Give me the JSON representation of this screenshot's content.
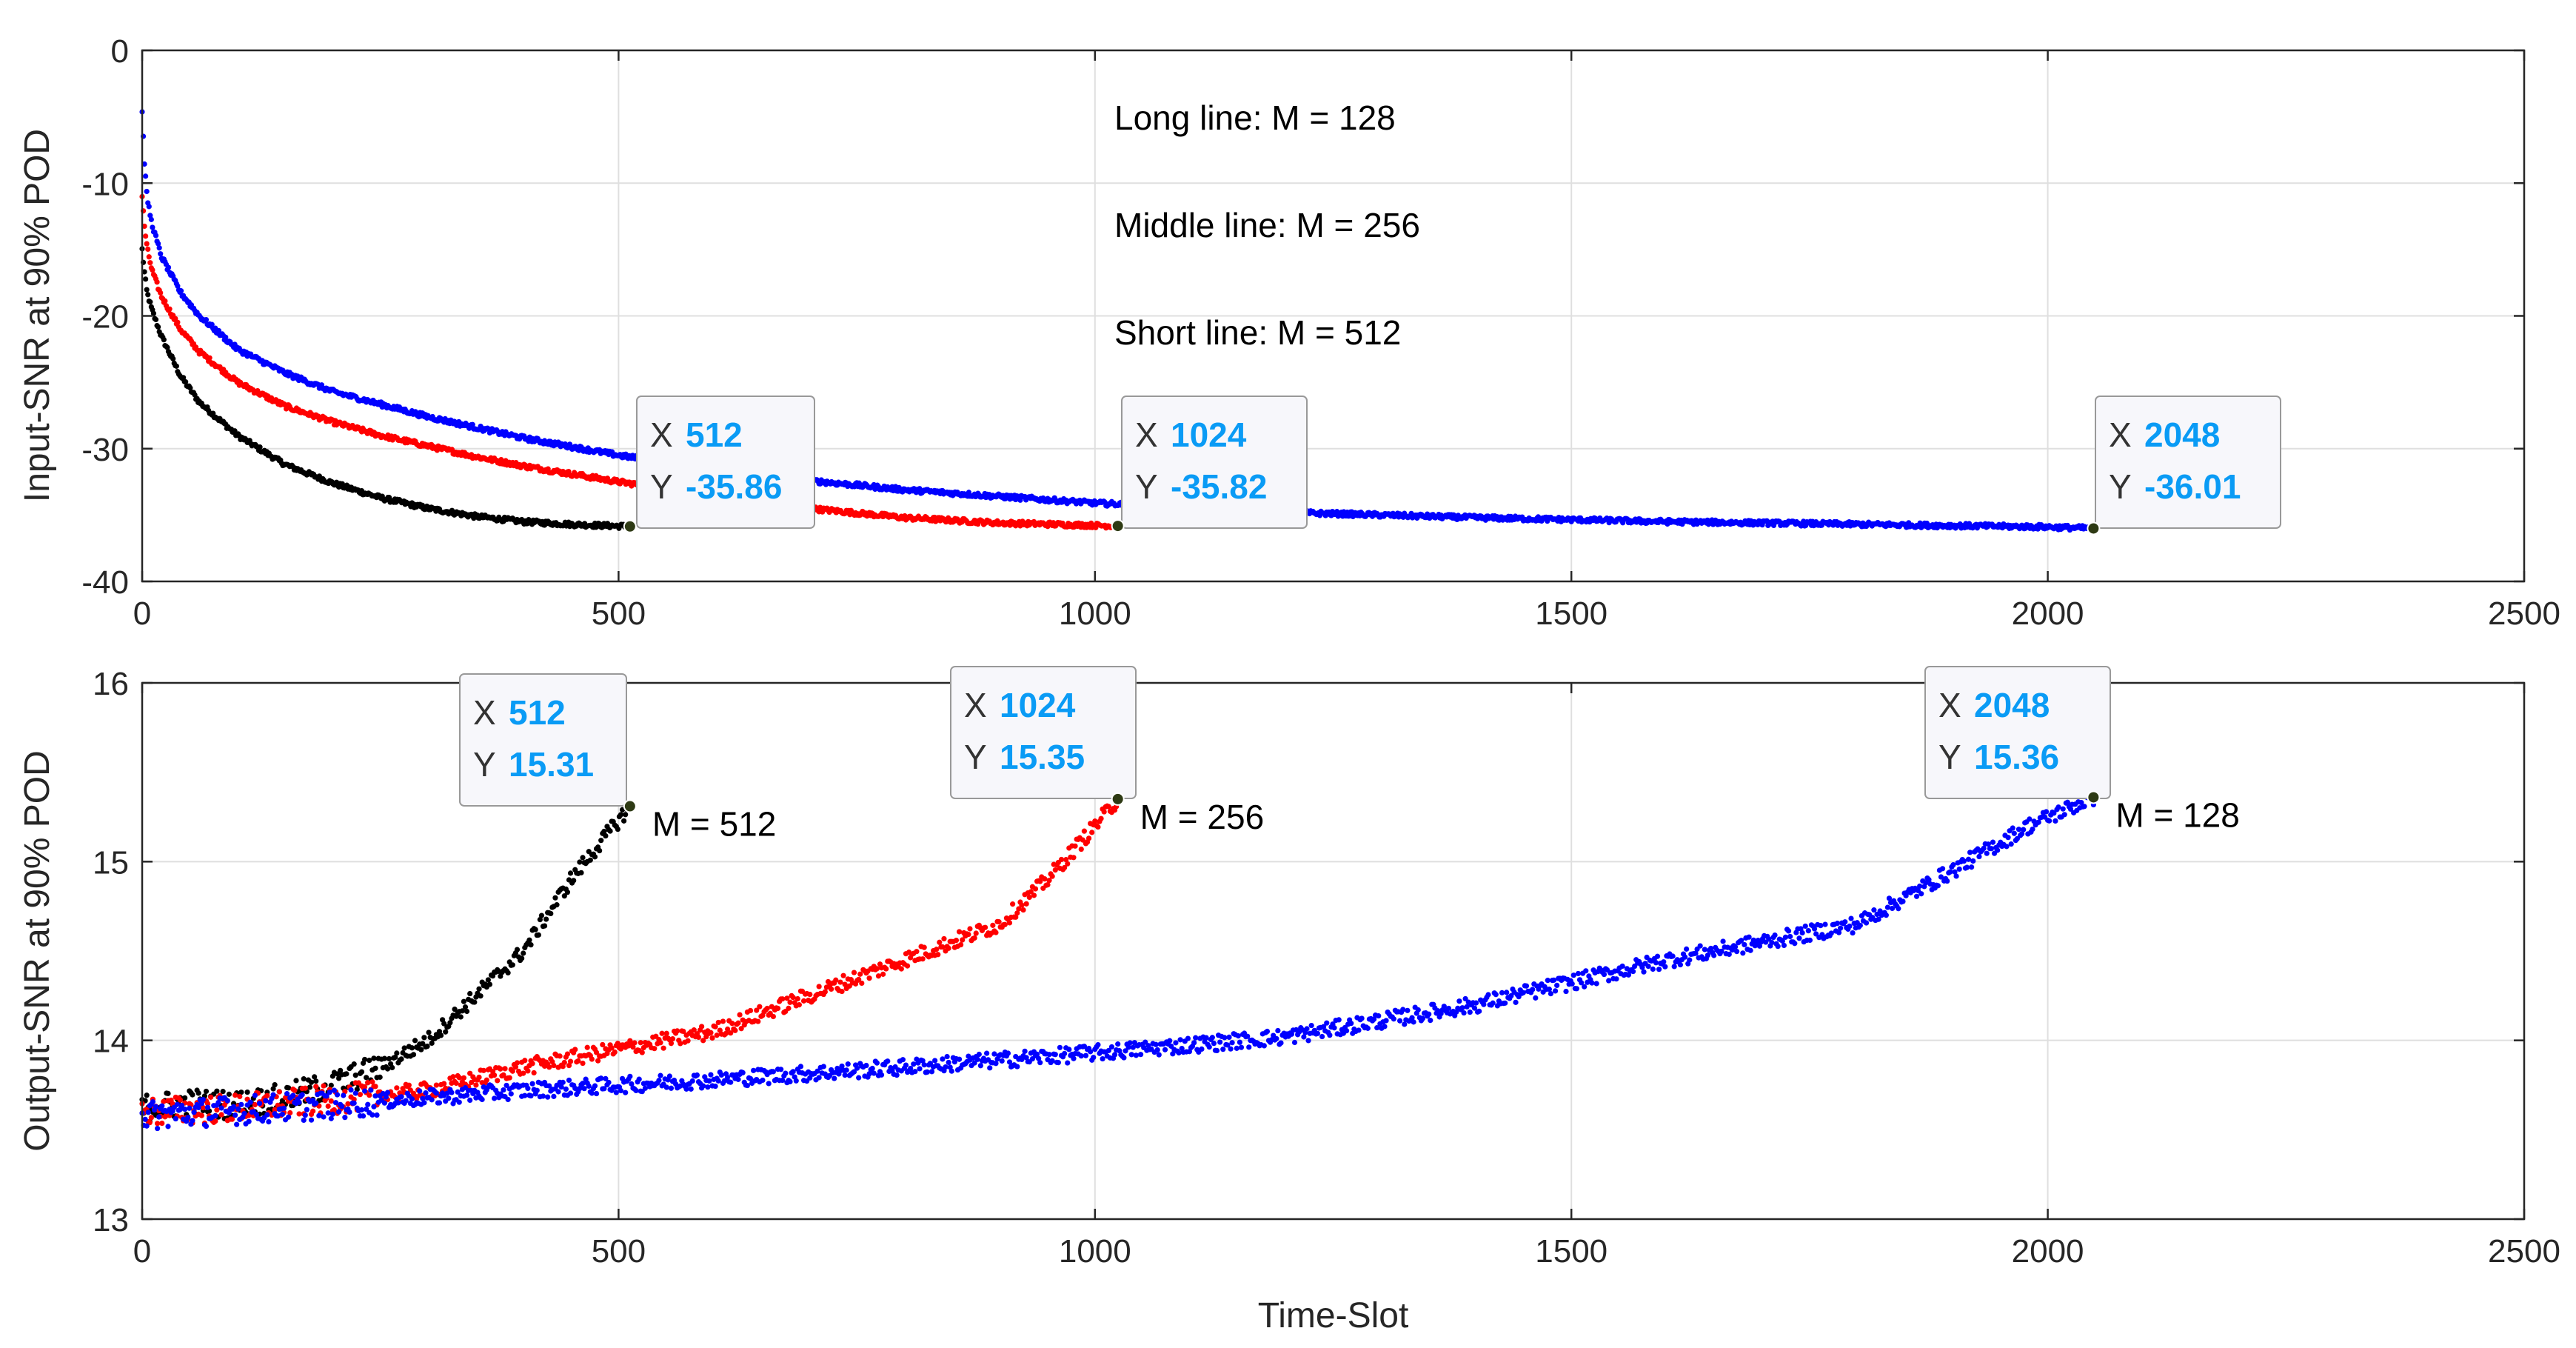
{
  "chart_data": [
    {
      "type": "scatter",
      "panel": "top",
      "xlabel": "",
      "ylabel": "Input-SNR at 90% POD",
      "xlim": [
        0,
        2500
      ],
      "ylim": [
        -40,
        0
      ],
      "xticks": [
        0,
        500,
        1000,
        1500,
        2000,
        2500
      ],
      "yticks": [
        0,
        -10,
        -20,
        -30,
        -40
      ],
      "grid": true,
      "series": [
        {
          "name": "M = 512",
          "color": "#000000",
          "points": [
            [
              0,
              -15
            ],
            [
              2,
              -16.5
            ],
            [
              5,
              -18.2
            ],
            [
              10,
              -19.5
            ],
            [
              20,
              -21.5
            ],
            [
              40,
              -24.5
            ],
            [
              60,
              -26.5
            ],
            [
              100,
              -29
            ],
            [
              150,
              -31.2
            ],
            [
              200,
              -32.6
            ],
            [
              250,
              -33.7
            ],
            [
              300,
              -34.5
            ],
            [
              350,
              -35.1
            ],
            [
              400,
              -35.5
            ],
            [
              450,
              -35.7
            ],
            [
              512,
              -35.86
            ]
          ]
        },
        {
          "name": "M = 256",
          "color": "#ff0000",
          "points": [
            [
              0,
              -11
            ],
            [
              2,
              -13
            ],
            [
              5,
              -14.8
            ],
            [
              10,
              -16.5
            ],
            [
              20,
              -18.5
            ],
            [
              40,
              -21
            ],
            [
              60,
              -22.7
            ],
            [
              100,
              -25
            ],
            [
              150,
              -26.8
            ],
            [
              200,
              -28
            ],
            [
              250,
              -29
            ],
            [
              300,
              -29.8
            ],
            [
              350,
              -30.6
            ],
            [
              400,
              -31.3
            ],
            [
              500,
              -32.5
            ],
            [
              600,
              -33.5
            ],
            [
              700,
              -34.5
            ],
            [
              800,
              -35.2
            ],
            [
              900,
              -35.6
            ],
            [
              1024,
              -35.82
            ]
          ]
        },
        {
          "name": "M = 128",
          "color": "#0000ff",
          "points": [
            [
              0,
              -4.5
            ],
            [
              2,
              -8
            ],
            [
              5,
              -11
            ],
            [
              10,
              -13
            ],
            [
              20,
              -15.5
            ],
            [
              40,
              -18.2
            ],
            [
              60,
              -20
            ],
            [
              100,
              -22.5
            ],
            [
              150,
              -24.3
            ],
            [
              200,
              -25.7
            ],
            [
              300,
              -27.6
            ],
            [
              400,
              -29.2
            ],
            [
              500,
              -30.5
            ],
            [
              600,
              -31.6
            ],
            [
              700,
              -32.4
            ],
            [
              800,
              -33.1
            ],
            [
              1000,
              -34.1
            ],
            [
              1200,
              -34.8
            ],
            [
              1400,
              -35.2
            ],
            [
              1600,
              -35.5
            ],
            [
              1800,
              -35.7
            ],
            [
              2000,
              -35.9
            ],
            [
              2048,
              -36.01
            ]
          ]
        }
      ],
      "annotations": [
        {
          "text": "Long line: M = 128"
        },
        {
          "text": "Middle line: M = 256"
        },
        {
          "text": "Short line: M = 512"
        }
      ],
      "datatips": [
        {
          "x": 512,
          "y": -35.86,
          "x_label": "512",
          "y_label": "-35.86"
        },
        {
          "x": 1024,
          "y": -35.82,
          "x_label": "1024",
          "y_label": "-35.82"
        },
        {
          "x": 2048,
          "y": -36.01,
          "x_label": "2048",
          "y_label": "-36.01"
        }
      ]
    },
    {
      "type": "scatter",
      "panel": "bottom",
      "xlabel": "Time-Slot",
      "ylabel": "Output-SNR at 90% POD",
      "xlim": [
        0,
        2500
      ],
      "ylim": [
        13,
        16
      ],
      "xticks": [
        0,
        500,
        1000,
        1500,
        2000,
        2500
      ],
      "yticks": [
        13,
        14,
        15,
        16
      ],
      "grid": true,
      "series": [
        {
          "name": "M = 512",
          "color": "#000000",
          "points": [
            [
              0,
              13.62
            ],
            [
              50,
              13.65
            ],
            [
              100,
              13.64
            ],
            [
              150,
              13.68
            ],
            [
              200,
              13.75
            ],
            [
              250,
              13.85
            ],
            [
              300,
              14.0
            ],
            [
              350,
              14.25
            ],
            [
              400,
              14.5
            ],
            [
              450,
              14.9
            ],
            [
              480,
              15.1
            ],
            [
              512,
              15.31
            ]
          ]
        },
        {
          "name": "M = 256",
          "color": "#ff0000",
          "points": [
            [
              0,
              13.6
            ],
            [
              100,
              13.62
            ],
            [
              200,
              13.67
            ],
            [
              300,
              13.72
            ],
            [
              400,
              13.85
            ],
            [
              500,
              13.95
            ],
            [
              600,
              14.05
            ],
            [
              700,
              14.25
            ],
            [
              800,
              14.45
            ],
            [
              900,
              14.65
            ],
            [
              950,
              14.9
            ],
            [
              1000,
              15.2
            ],
            [
              1024,
              15.35
            ]
          ]
        },
        {
          "name": "M = 128",
          "color": "#0000ff",
          "points": [
            [
              0,
              13.58
            ],
            [
              200,
              13.64
            ],
            [
              400,
              13.72
            ],
            [
              600,
              13.78
            ],
            [
              800,
              13.85
            ],
            [
              1000,
              13.93
            ],
            [
              1200,
              14.02
            ],
            [
              1400,
              14.2
            ],
            [
              1600,
              14.45
            ],
            [
              1800,
              14.65
            ],
            [
              1900,
              14.95
            ],
            [
              1980,
              15.2
            ],
            [
              2048,
              15.36
            ]
          ]
        }
      ],
      "annotations": [
        {
          "text": "M = 512",
          "x": 512
        },
        {
          "text": "M = 256",
          "x": 1024
        },
        {
          "text": "M = 128",
          "x": 2048
        }
      ],
      "datatips": [
        {
          "x": 512,
          "y": 15.31,
          "x_label": "512",
          "y_label": "15.31"
        },
        {
          "x": 1024,
          "y": 15.35,
          "x_label": "1024",
          "y_label": "15.35"
        },
        {
          "x": 2048,
          "y": 15.36,
          "x_label": "2048",
          "y_label": "15.36"
        }
      ]
    }
  ],
  "datatip_keys": {
    "x": "X",
    "y": "Y"
  }
}
